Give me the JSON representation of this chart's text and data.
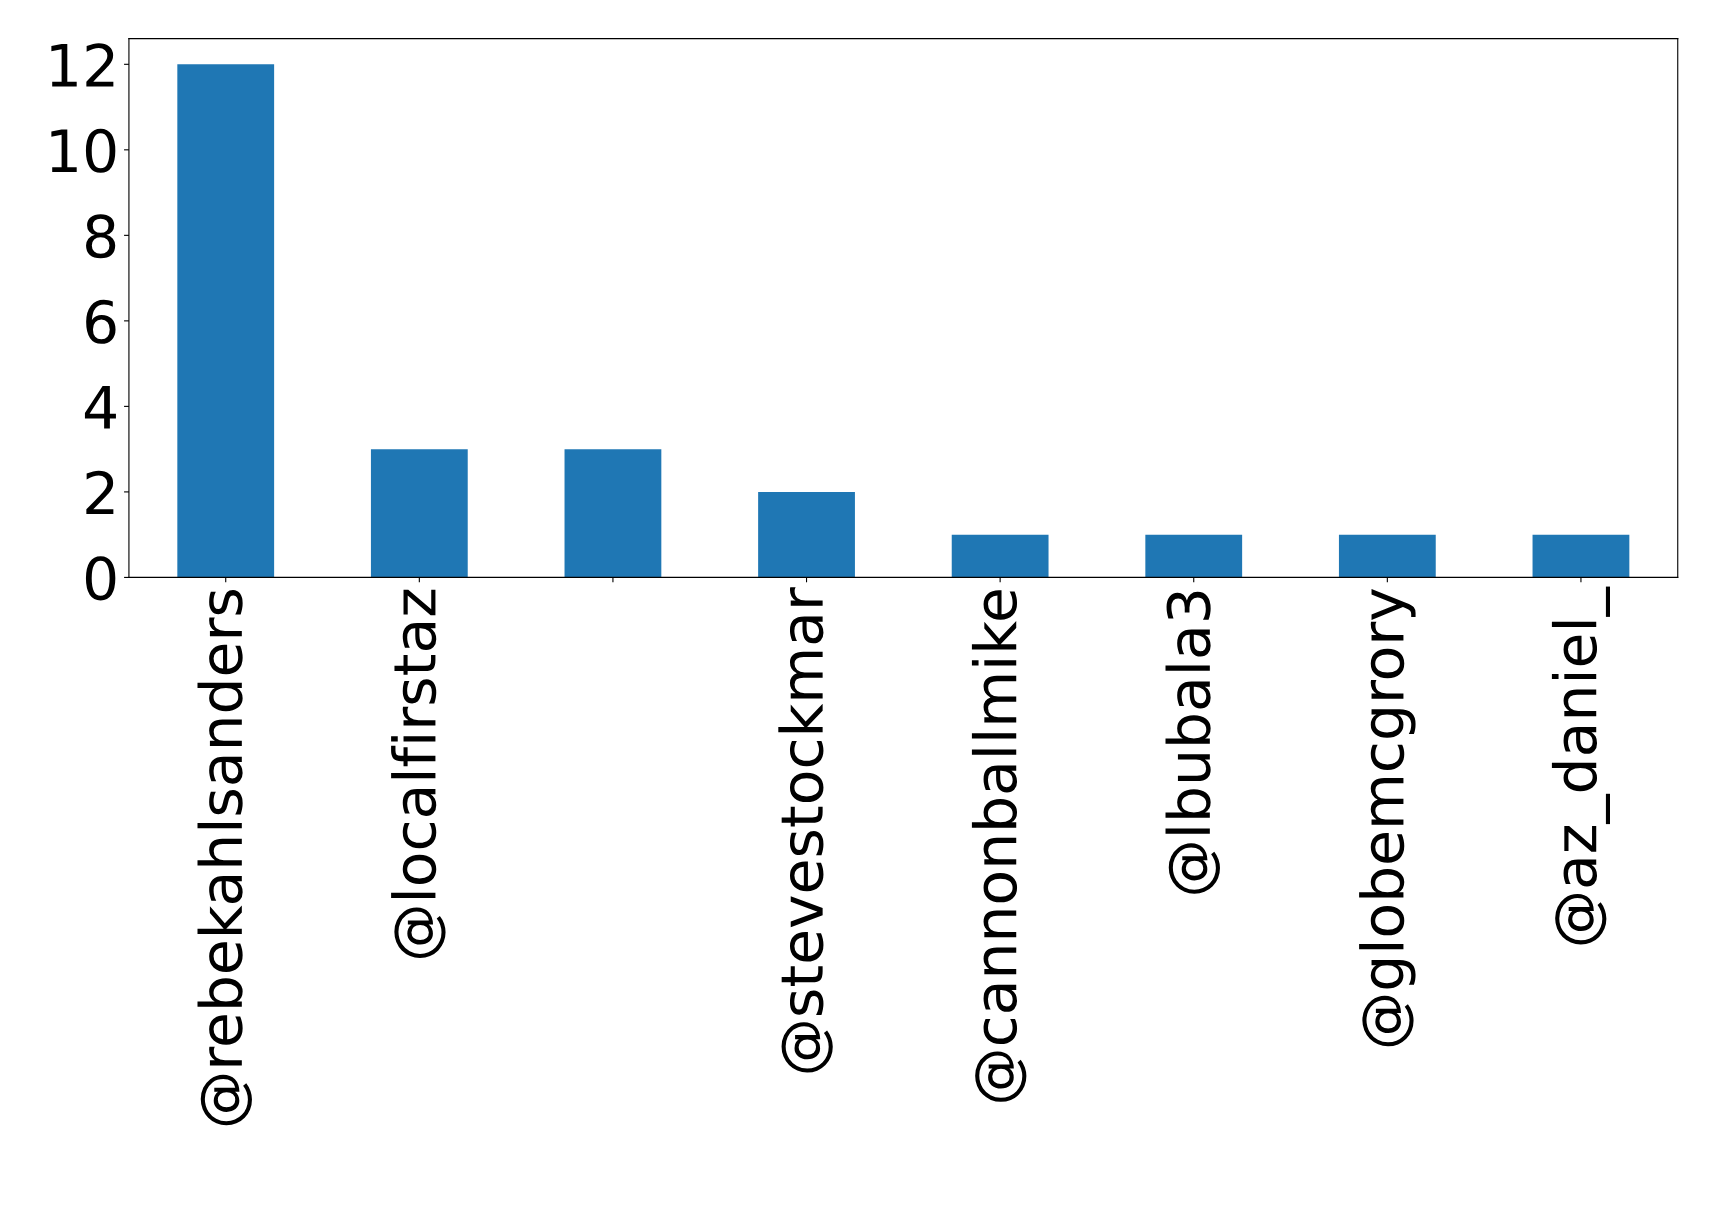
{
  "chart_data": {
    "type": "bar",
    "categories": [
      "@rebekahlsanders",
      "@localfirstaz",
      null,
      "@stevestockmar",
      "@cannonballmike",
      "@lbubala3",
      "@globemcgrory",
      "@az_daniel_"
    ],
    "values": [
      12,
      3,
      3,
      2,
      1,
      1,
      1,
      1
    ],
    "color": "#1f77b4",
    "ylim": [
      0,
      12.6
    ],
    "yticks": [
      0,
      2,
      4,
      6,
      8,
      10,
      12
    ],
    "grid": false,
    "legend": false
  }
}
